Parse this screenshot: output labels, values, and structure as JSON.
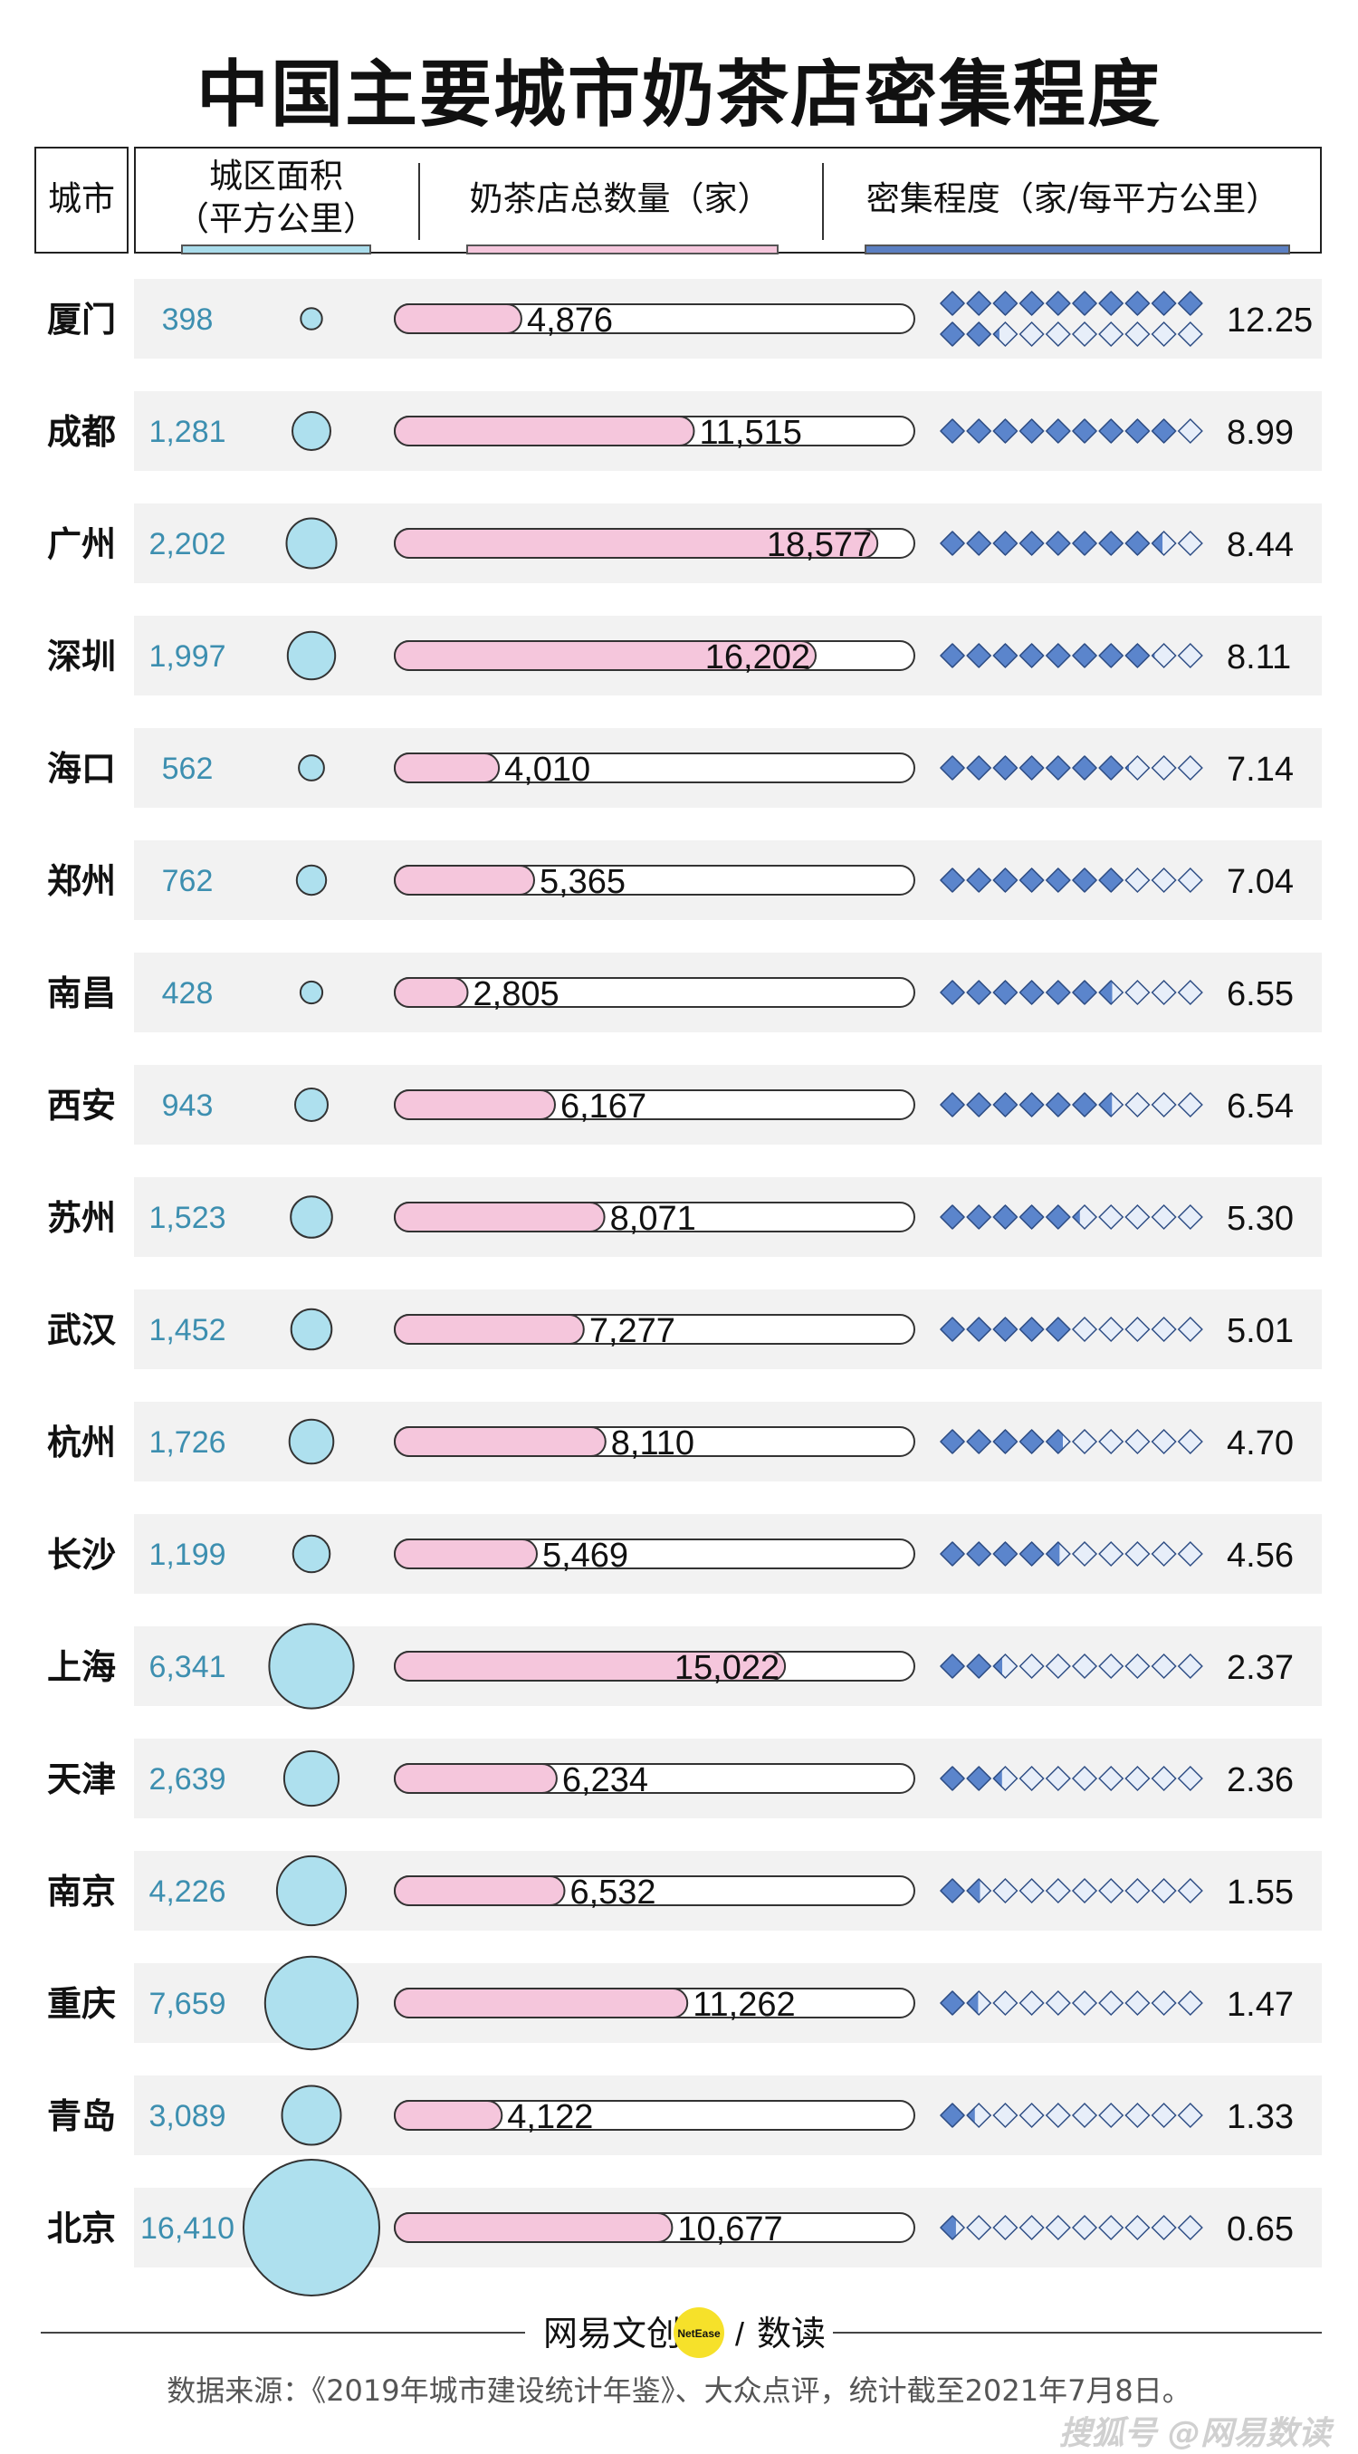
{
  "title": "中国主要城市奶茶店密集程度",
  "header": {
    "city": "城市",
    "area_line1": "城区面积",
    "area_line2": "（平方公里）",
    "count": "奶茶店总数量（家）",
    "density": "密集程度（家/每平方公里）"
  },
  "colors": {
    "area_circle": "#aee0ee",
    "area_text": "#3d8fb0",
    "count_bar": "#f5c6dc",
    "density_diamond": "#5b85cc",
    "density_diamond_empty": "#e7eef9",
    "row_background": "#f2f2f2",
    "header_area_line": "#a9dceb",
    "header_count_line": "#f5c6dc",
    "header_density_line": "#5b7fc2"
  },
  "chart_data": {
    "type": "table",
    "columns": [
      "城市",
      "城区面积（平方公里）",
      "奶茶店总数量（家）",
      "密集程度（家/每平方公里）"
    ],
    "count_max": 20000,
    "rows": [
      {
        "city": "厦门",
        "area": 398,
        "area_label": "398",
        "count": 4876,
        "count_label": "4,876",
        "density": 12.25,
        "density_label": "12.25"
      },
      {
        "city": "成都",
        "area": 1281,
        "area_label": "1,281",
        "count": 11515,
        "count_label": "11,515",
        "density": 8.99,
        "density_label": "8.99"
      },
      {
        "city": "广州",
        "area": 2202,
        "area_label": "2,202",
        "count": 18577,
        "count_label": "18,577",
        "density": 8.44,
        "density_label": "8.44"
      },
      {
        "city": "深圳",
        "area": 1997,
        "area_label": "1,997",
        "count": 16202,
        "count_label": "16,202",
        "density": 8.11,
        "density_label": "8.11"
      },
      {
        "city": "海口",
        "area": 562,
        "area_label": "562",
        "count": 4010,
        "count_label": "4,010",
        "density": 7.14,
        "density_label": "7.14"
      },
      {
        "city": "郑州",
        "area": 762,
        "area_label": "762",
        "count": 5365,
        "count_label": "5,365",
        "density": 7.04,
        "density_label": "7.04"
      },
      {
        "city": "南昌",
        "area": 428,
        "area_label": "428",
        "count": 2805,
        "count_label": "2,805",
        "density": 6.55,
        "density_label": "6.55"
      },
      {
        "city": "西安",
        "area": 943,
        "area_label": "943",
        "count": 6167,
        "count_label": "6,167",
        "density": 6.54,
        "density_label": "6.54"
      },
      {
        "city": "苏州",
        "area": 1523,
        "area_label": "1,523",
        "count": 8071,
        "count_label": "8,071",
        "density": 5.3,
        "density_label": "5.30"
      },
      {
        "city": "武汉",
        "area": 1452,
        "area_label": "1,452",
        "count": 7277,
        "count_label": "7,277",
        "density": 5.01,
        "density_label": "5.01"
      },
      {
        "city": "杭州",
        "area": 1726,
        "area_label": "1,726",
        "count": 8110,
        "count_label": "8,110",
        "density": 4.7,
        "density_label": "4.70"
      },
      {
        "city": "长沙",
        "area": 1199,
        "area_label": "1,199",
        "count": 5469,
        "count_label": "5,469",
        "density": 4.56,
        "density_label": "4.56"
      },
      {
        "city": "上海",
        "area": 6341,
        "area_label": "6,341",
        "count": 15022,
        "count_label": "15,022",
        "density": 2.37,
        "density_label": "2.37"
      },
      {
        "city": "天津",
        "area": 2639,
        "area_label": "2,639",
        "count": 6234,
        "count_label": "6,234",
        "density": 2.36,
        "density_label": "2.36"
      },
      {
        "city": "南京",
        "area": 4226,
        "area_label": "4,226",
        "count": 6532,
        "count_label": "6,532",
        "density": 1.55,
        "density_label": "1.55"
      },
      {
        "city": "重庆",
        "area": 7659,
        "area_label": "7,659",
        "count": 11262,
        "count_label": "11,262",
        "density": 1.47,
        "density_label": "1.47"
      },
      {
        "city": "青岛",
        "area": 3089,
        "area_label": "3,089",
        "count": 4122,
        "count_label": "4,122",
        "density": 1.33,
        "density_label": "1.33"
      },
      {
        "city": "北京",
        "area": 16410,
        "area_label": "16,410",
        "count": 10677,
        "count_label": "10,677",
        "density": 0.65,
        "density_label": "0.65"
      }
    ]
  },
  "brand": {
    "left": "网易文创",
    "badge": "NetEase",
    "sep": "/",
    "right": "数读"
  },
  "source": "数据来源：《2019年城市建设统计年鉴》、大众点评，统计截至2021年7月8日。",
  "watermark": "搜狐号 @网易数读"
}
